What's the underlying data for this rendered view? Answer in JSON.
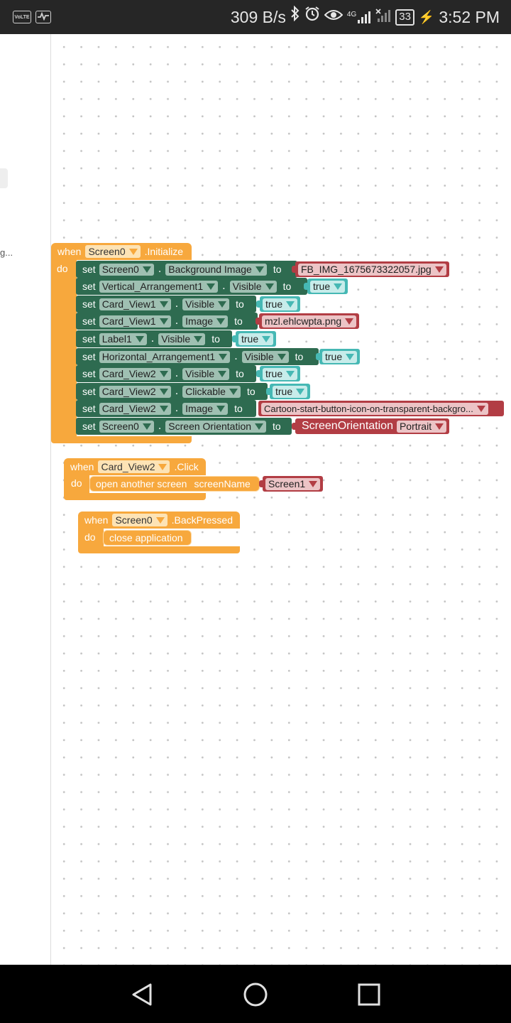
{
  "status_bar": {
    "volte": "VoLTE",
    "net_speed": "309 B/s",
    "network": "4G",
    "battery": "33",
    "time": "3:52 PM",
    "icons": [
      "volte-icon",
      "activity-icon",
      "bluetooth-icon",
      "alarm-icon",
      "eye-icon",
      "signal-4g-icon",
      "no-signal-icon",
      "battery-icon",
      "charging-icon"
    ]
  },
  "sidebar": {
    "truncated_text": "g..."
  },
  "blocks": {
    "initialize": {
      "when": "when",
      "component": "Screen0",
      "event": ".Initialize",
      "do": "do",
      "rows": [
        {
          "set": "set",
          "component": "Screen0",
          "property": "Background Image",
          "to": "to",
          "value": "FB_IMG_1675673322057.jpg",
          "kind": "text"
        },
        {
          "set": "set",
          "component": "Vertical_Arrangement1",
          "property": "Visible",
          "to": "to",
          "value": "true",
          "kind": "bool"
        },
        {
          "set": "set",
          "component": "Card_View1",
          "property": "Visible",
          "to": "to",
          "value": "true",
          "kind": "bool"
        },
        {
          "set": "set",
          "component": "Card_View1",
          "property": "Image",
          "to": "to",
          "value": "mzl.ehlcwpta.png",
          "kind": "text"
        },
        {
          "set": "set",
          "component": "Label1",
          "property": "Visible",
          "to": "to",
          "value": "true",
          "kind": "bool"
        },
        {
          "set": "set",
          "component": "Horizontal_Arrangement1",
          "property": "Visible",
          "to": "to",
          "value": "true",
          "kind": "bool"
        },
        {
          "set": "set",
          "component": "Card_View2",
          "property": "Visible",
          "to": "to",
          "value": "true",
          "kind": "bool"
        },
        {
          "set": "set",
          "component": "Card_View2",
          "property": "Clickable",
          "to": "to",
          "value": "true",
          "kind": "bool"
        },
        {
          "set": "set",
          "component": "Card_View2",
          "property": "Image",
          "to": "to",
          "value": "Cartoon-start-button-icon-on-transparent-backgro...",
          "kind": "text"
        },
        {
          "set": "set",
          "component": "Screen0",
          "property": "Screen Orientation",
          "to": "to",
          "value_prefix": "ScreenOrientation",
          "value": "Portrait",
          "kind": "enum"
        }
      ]
    },
    "click": {
      "when": "when",
      "component": "Card_View2",
      "event": ".Click",
      "do": "do",
      "command": "open another screen",
      "param": "screenName",
      "value": "Screen1"
    },
    "back": {
      "when": "when",
      "component": "Screen0",
      "event": ".BackPressed",
      "do": "do",
      "command": "close application"
    }
  },
  "nav_bar": {
    "icons": [
      "back-icon",
      "home-icon",
      "recents-icon"
    ]
  }
}
